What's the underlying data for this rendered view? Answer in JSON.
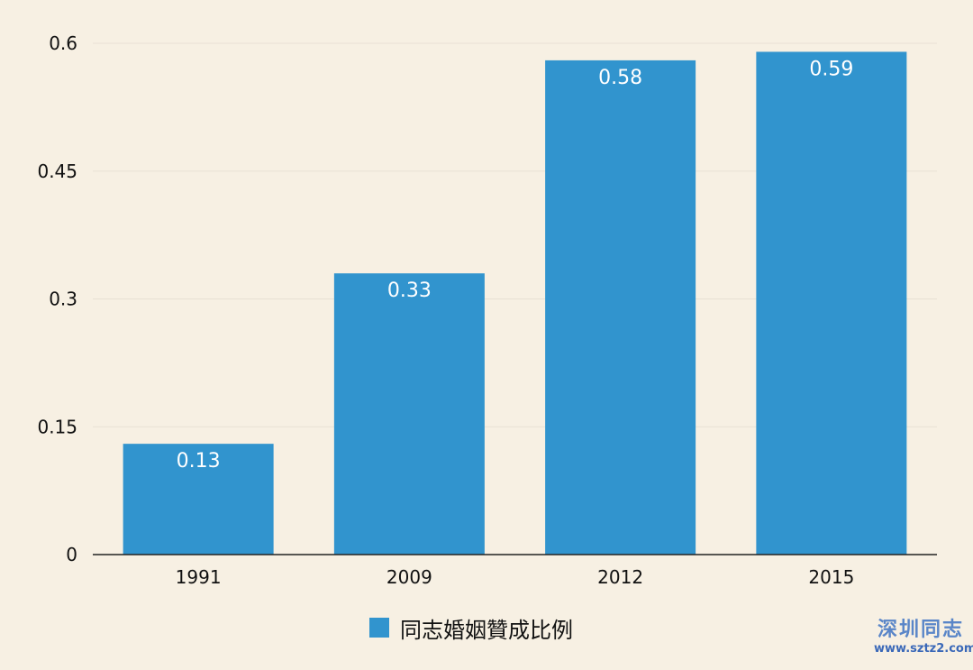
{
  "chart_data": {
    "type": "bar",
    "categories": [
      "1991",
      "2009",
      "2012",
      "2015"
    ],
    "series": [
      {
        "name": "同志婚姻贊成比例",
        "values": [
          0.13,
          0.33,
          0.58,
          0.59
        ],
        "color": "#3194ce"
      }
    ],
    "data_labels": [
      "0.13",
      "0.33",
      "0.58",
      "0.59"
    ],
    "yticks": [
      "0",
      "0.15",
      "0.3",
      "0.45",
      "0.6"
    ],
    "ylim": [
      0,
      0.6
    ],
    "grid": true,
    "legend": "bottom"
  },
  "watermark": {
    "text": "深圳同志",
    "url": "www.sztz2.com"
  },
  "colors": {
    "background": "#f7f0e3",
    "bar": "#3194ce",
    "grid": "#e8e1d4",
    "axis": "#222222"
  }
}
